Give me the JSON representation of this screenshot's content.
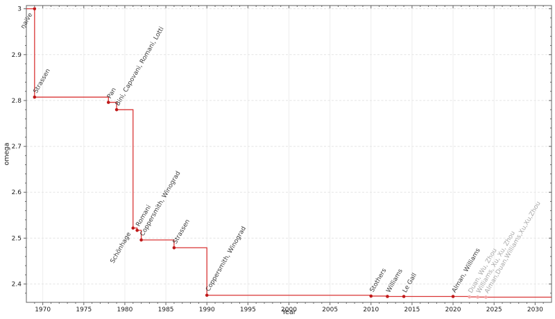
{
  "chart_data": {
    "type": "line",
    "subtype": "step-post-with-markers",
    "title": "",
    "xlabel": "Year",
    "ylabel": "omega",
    "xlim": [
      1968,
      2032
    ],
    "ylim": [
      2.36,
      3.007
    ],
    "xticks_major": [
      1970,
      1975,
      1980,
      1985,
      1990,
      1995,
      2000,
      2005,
      2010,
      2015,
      2020,
      2025,
      2030
    ],
    "x_minor_step": 1,
    "yticks_major": [
      2.4,
      2.5,
      2.6,
      2.7,
      2.8,
      2.9,
      3.0
    ],
    "ytick_labels": [
      "2.4",
      "2.5",
      "2.6",
      "2.7",
      "2.8",
      "2.9",
      "3"
    ],
    "y_minor_step": 0.02,
    "grid": {
      "vertical": "solid",
      "horizontal": "dashed",
      "on": true
    },
    "legend": "none",
    "colors": {
      "line": "#d93434",
      "point": "#bf1a1a",
      "point_light": "#f2a8a8",
      "label": "#3c3c3c",
      "label_light": "#a8a8a8",
      "grid_v": "#ededed",
      "grid_h": "#e4e4e4",
      "frame": "#606060",
      "tick_text": "#1a1a1a"
    },
    "points": [
      {
        "year": 1969,
        "omega": 3.0,
        "label": "naive",
        "label_side": "below",
        "light": false
      },
      {
        "year": 1969,
        "omega": 2.8074,
        "label": "Strassen",
        "label_side": "above",
        "light": false
      },
      {
        "year": 1978,
        "omega": 2.796,
        "label": "Pan",
        "label_side": "above",
        "light": false
      },
      {
        "year": 1979,
        "omega": 2.78,
        "label": "Bini, Capovani, Romani, Lotti",
        "label_side": "above",
        "light": false
      },
      {
        "year": 1981,
        "omega": 2.522,
        "label": "Schönhage",
        "label_side": "below",
        "light": false
      },
      {
        "year": 1981.5,
        "omega": 2.517,
        "label": "Romani",
        "label_side": "above",
        "light": false
      },
      {
        "year": 1982,
        "omega": 2.496,
        "label": "Coppersmith, Winograd",
        "label_side": "above",
        "light": false
      },
      {
        "year": 1986,
        "omega": 2.479,
        "label": "Strassen",
        "label_side": "above",
        "light": false
      },
      {
        "year": 1990,
        "omega": 2.3755,
        "label": "Coppersmith, Winograd",
        "label_side": "above",
        "light": false
      },
      {
        "year": 2010,
        "omega": 2.3737,
        "label": "Stothers",
        "label_side": "above",
        "light": false
      },
      {
        "year": 2012,
        "omega": 2.372873,
        "label": "Williams",
        "label_side": "above",
        "light": false
      },
      {
        "year": 2014,
        "omega": 2.3728639,
        "label": "Le Gall",
        "label_side": "above",
        "light": false
      },
      {
        "year": 2020,
        "omega": 2.3728596,
        "label": "Alman, Williams",
        "label_side": "above",
        "light": false
      },
      {
        "year": 2022,
        "omega": 2.371866,
        "label": "Duan, Wu, Zhou",
        "label_side": "above",
        "light": true
      },
      {
        "year": 2023,
        "omega": 2.371552,
        "label": "Williams, Xu, Xu, Zhou",
        "label_side": "above",
        "light": true
      },
      {
        "year": 2024,
        "omega": 2.371339,
        "label": "Alman,Duan,Williams,Xu,Xu,Zhou",
        "label_side": "above",
        "light": true
      }
    ]
  }
}
